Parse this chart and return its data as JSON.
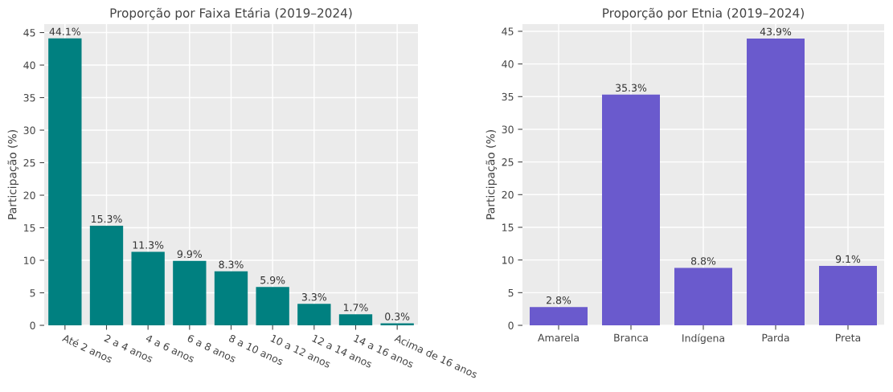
{
  "chart_data": [
    {
      "type": "bar",
      "title": "Proporção por Faixa Etária (2019–2024)",
      "ylabel": "Participação (%)",
      "categories": [
        "Até 2 anos",
        "2 a 4 anos",
        "4 a 6 anos",
        "6 a 8 anos",
        "8 a 10 anos",
        "10 a 12 anos",
        "12 a 14 anos",
        "14 a 16 anos",
        "Acima de 16 anos"
      ],
      "values": [
        44.1,
        15.3,
        11.3,
        9.9,
        8.3,
        5.9,
        3.3,
        1.7,
        0.3
      ],
      "value_labels": [
        "44.1%",
        "15.3%",
        "11.3%",
        "9.9%",
        "8.3%",
        "5.9%",
        "3.3%",
        "1.7%",
        "0.3%"
      ],
      "color": "#008080",
      "ylim": [
        0,
        46.3
      ],
      "yticks": [
        0,
        5,
        10,
        15,
        20,
        25,
        30,
        35,
        40,
        45
      ],
      "grid": true,
      "legend": false
    },
    {
      "type": "bar",
      "title": "Proporção por Etnia (2019–2024)",
      "ylabel": "Participação (%)",
      "categories": [
        "Amarela",
        "Branca",
        "Indígena",
        "Parda",
        "Preta"
      ],
      "values": [
        2.8,
        35.3,
        8.8,
        43.9,
        9.1
      ],
      "value_labels": [
        "2.8%",
        "35.3%",
        "8.8%",
        "43.9%",
        "9.1%"
      ],
      "color": "#6a5acd",
      "ylim": [
        0,
        46.1
      ],
      "yticks": [
        0,
        5,
        10,
        15,
        20,
        25,
        30,
        35,
        40,
        45
      ],
      "grid": true,
      "legend": false
    }
  ]
}
